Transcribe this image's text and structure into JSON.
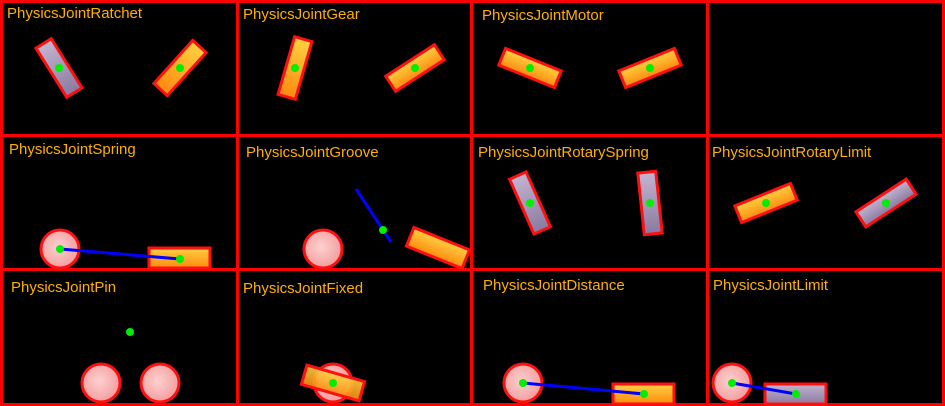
{
  "colors": {
    "background": "#000000",
    "cell_border": "#ff0000",
    "title_text": "#ffb000",
    "anchor_point": "#00ee00",
    "joint_line": "#0000ff",
    "box_orange_fill": "#ffa020",
    "box_purple_fill": "#9a8aa8",
    "ball_fill": "#f2aaaa",
    "body_outline": "#ff1010"
  },
  "cells": [
    {
      "title": "PhysicsJointRatchet"
    },
    {
      "title": "PhysicsJointGear"
    },
    {
      "title": "PhysicsJointMotor"
    },
    {
      "title": ""
    },
    {
      "title": "PhysicsJointSpring"
    },
    {
      "title": "PhysicsJointGroove"
    },
    {
      "title": "PhysicsJointRotarySpring"
    },
    {
      "title": "PhysicsJointRotaryLimit"
    },
    {
      "title": "PhysicsJointPin"
    },
    {
      "title": "PhysicsJointFixed"
    },
    {
      "title": "PhysicsJointDistance"
    },
    {
      "title": "PhysicsJointLimit"
    }
  ]
}
